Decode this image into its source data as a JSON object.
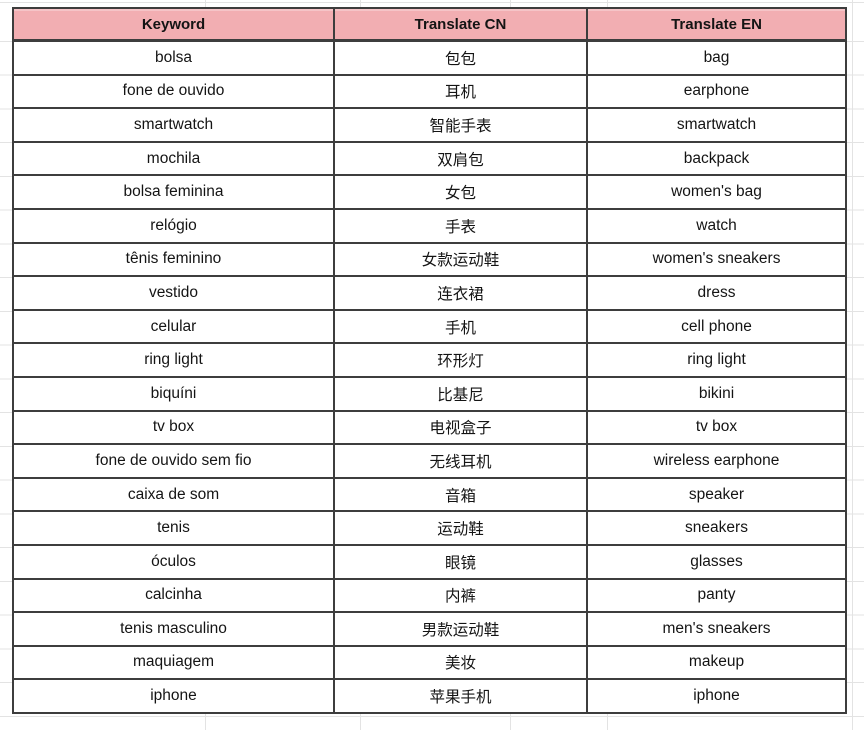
{
  "table": {
    "headers": [
      "Keyword",
      "Translate CN",
      "Translate EN"
    ],
    "rows": [
      {
        "keyword": "bolsa",
        "cn": "包包",
        "en": "bag"
      },
      {
        "keyword": "fone de ouvido",
        "cn": "耳机",
        "en": "earphone"
      },
      {
        "keyword": "smartwatch",
        "cn": "智能手表",
        "en": "smartwatch"
      },
      {
        "keyword": "mochila",
        "cn": "双肩包",
        "en": "backpack"
      },
      {
        "keyword": "bolsa feminina",
        "cn": "女包",
        "en": "women's bag"
      },
      {
        "keyword": "relógio",
        "cn": "手表",
        "en": "watch"
      },
      {
        "keyword": "tênis feminino",
        "cn": "女款运动鞋",
        "en": "women's sneakers"
      },
      {
        "keyword": "vestido",
        "cn": "连衣裙",
        "en": "dress"
      },
      {
        "keyword": "celular",
        "cn": "手机",
        "en": "cell phone"
      },
      {
        "keyword": "ring light",
        "cn": "环形灯",
        "en": "ring light"
      },
      {
        "keyword": "biquíni",
        "cn": "比基尼",
        "en": "bikini"
      },
      {
        "keyword": "tv box",
        "cn": "电视盒子",
        "en": "tv box"
      },
      {
        "keyword": "fone de ouvido sem fio",
        "cn": "无线耳机",
        "en": "wireless earphone"
      },
      {
        "keyword": "caixa de som",
        "cn": "音箱",
        "en": "speaker"
      },
      {
        "keyword": "tenis",
        "cn": "运动鞋",
        "en": "sneakers"
      },
      {
        "keyword": "óculos",
        "cn": "眼镜",
        "en": "glasses"
      },
      {
        "keyword": "calcinha",
        "cn": "内裤",
        "en": "panty"
      },
      {
        "keyword": "tenis masculino",
        "cn": "男款运动鞋",
        "en": "men's sneakers"
      },
      {
        "keyword": "maquiagem",
        "cn": "美妆",
        "en": "makeup"
      },
      {
        "keyword": "iphone",
        "cn": "苹果手机",
        "en": "iphone"
      }
    ]
  },
  "colors": {
    "header_bg": "#F2AEB2",
    "table_border": "#3d3d3d",
    "sheet_gridline": "#e3e3e3",
    "text": "#141414"
  }
}
